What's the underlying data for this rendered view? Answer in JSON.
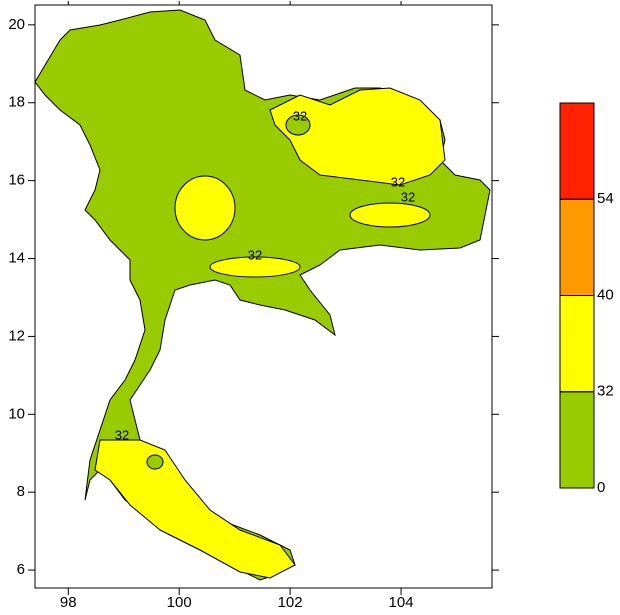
{
  "map": {
    "xlim": [
      97.4,
      105.64
    ],
    "ylim": [
      5.54,
      20.51
    ],
    "xticks": [
      98,
      100,
      102,
      104
    ],
    "yticks": [
      6,
      8,
      10,
      12,
      14,
      16,
      18,
      20
    ],
    "contour_labels": [
      "32",
      "32",
      "32",
      "32",
      "32"
    ],
    "colorbar": {
      "levels": [
        0,
        32,
        40,
        54
      ],
      "colors": [
        "#99cc00",
        "#ffff00",
        "#ff9900",
        "#ff2200"
      ]
    }
  }
}
